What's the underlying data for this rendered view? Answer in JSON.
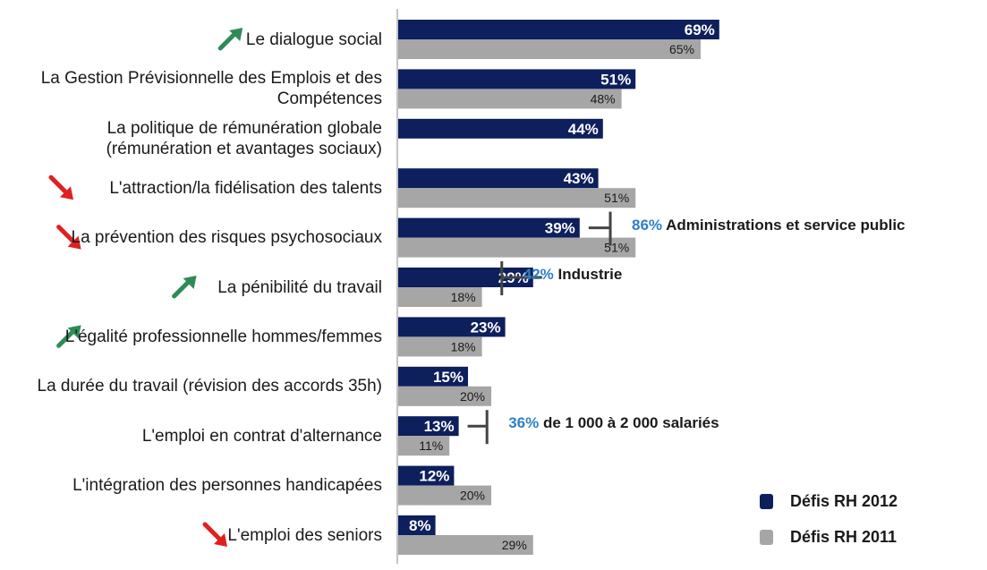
{
  "chart_data": {
    "type": "bar",
    "orientation": "horizontal",
    "categories": [
      "Le dialogue social",
      "La Gestion Prévisionnelle des Emplois et des Compétences",
      "La politique de rémunération globale (rémunération et avantages sociaux)",
      "L'attraction/la fidélisation des talents",
      "La prévention des risques psychosociaux",
      "La pénibilité du travail",
      "L'égalité professionnelle hommes/femmes",
      "La durée du travail (révision des accords 35h)",
      "L'emploi en contrat d'alternance",
      "L'intégration des personnes handicapées",
      "L'emploi des seniors"
    ],
    "category_lines": [
      [
        "Le dialogue social"
      ],
      [
        "La Gestion Prévisionnelle des Emplois et des",
        "Compétences"
      ],
      [
        "La politique de rémunération globale",
        "(rémunération et avantages sociaux)"
      ],
      [
        "L'attraction/la fidélisation des talents"
      ],
      [
        "La prévention des risques psychosociaux"
      ],
      [
        "La pénibilité du travail"
      ],
      [
        "L'égalité professionnelle hommes/femmes"
      ],
      [
        "La durée du travail (révision des accords 35h)"
      ],
      [
        "L'emploi en contrat d'alternance"
      ],
      [
        "L'intégration des personnes handicapées"
      ],
      [
        "L'emploi des seniors"
      ]
    ],
    "series": [
      {
        "name": "Défis RH 2012",
        "color": "#0d1f5c",
        "label_color": "#ffffff",
        "values": [
          69,
          51,
          44,
          43,
          39,
          29,
          23,
          15,
          13,
          12,
          8
        ]
      },
      {
        "name": "Défis RH 2011",
        "color": "#a6a6a6",
        "label_color": "#1a1a1a",
        "values": [
          65,
          48,
          null,
          51,
          51,
          18,
          18,
          20,
          11,
          20,
          29
        ]
      }
    ],
    "value_suffix": "%",
    "trend_arrows": [
      "up",
      null,
      null,
      "down",
      "down",
      "up",
      "up",
      null,
      null,
      null,
      "down"
    ],
    "trend_colors": {
      "up": "#2e8b57",
      "down": "#e02020"
    },
    "annotations": [
      {
        "category": "La prévention des risques psychosociaux",
        "series": "Défis RH 2012",
        "value": 86,
        "pct_text": "86%",
        "text": "Administrations et service public"
      },
      {
        "category": "La pénibilité du travail",
        "series": "Défis RH 2012",
        "value": 42,
        "pct_text": "42%",
        "text": "Industrie"
      },
      {
        "category": "L'emploi en contrat d'alternance",
        "series": "Défis RH 2012",
        "value": 36,
        "pct_text": "36%",
        "text": "de 1 000 à 2 000 salariés"
      }
    ],
    "legend_position": "bottom-right",
    "grid": false,
    "xlim": [
      0,
      100
    ]
  }
}
